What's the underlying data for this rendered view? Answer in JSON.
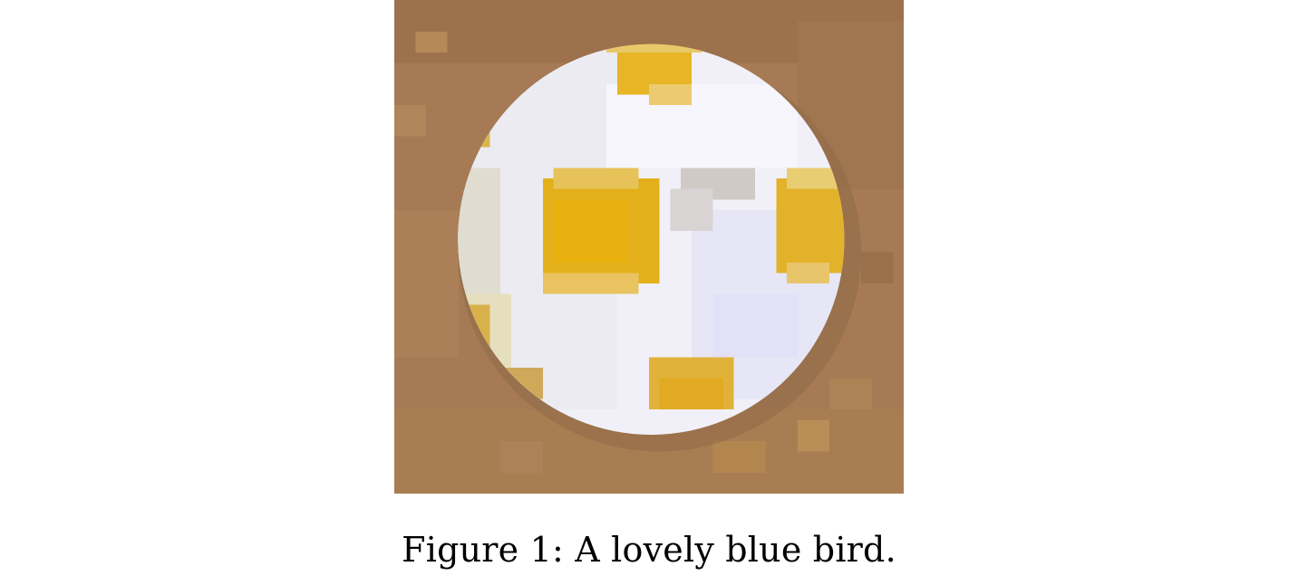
{
  "figure": {
    "caption": "Figure 1: A lovely blue bird."
  },
  "colors": {
    "background_brown": "#a57a55",
    "ball_white": "#f1f0f8",
    "spot_yellow": "#e4b21a",
    "shadow": "#8b6440"
  }
}
